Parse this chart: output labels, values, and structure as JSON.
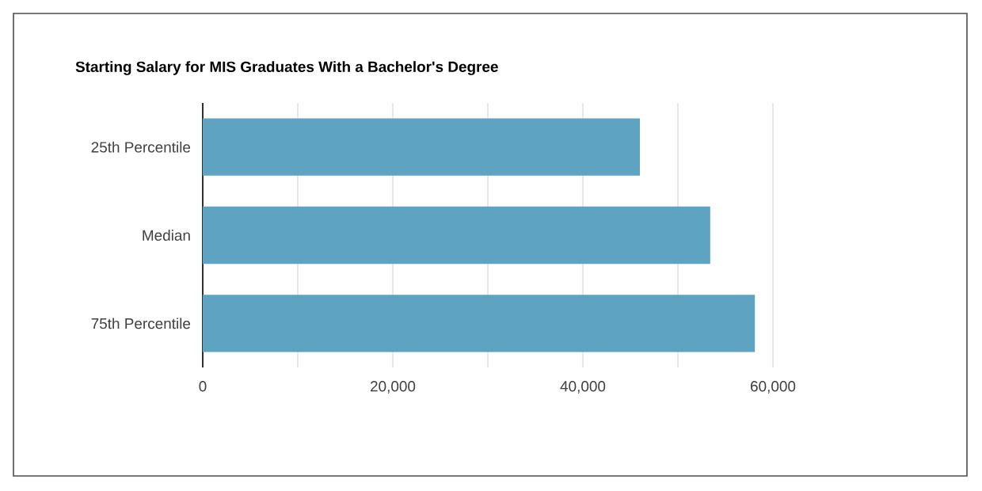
{
  "chart_data": {
    "type": "bar",
    "orientation": "horizontal",
    "title": "Starting Salary for MIS Graduates With a Bachelor's Degree",
    "categories": [
      "25th Percentile",
      "Median",
      "75th Percentile"
    ],
    "values": [
      46000,
      53400,
      58100
    ],
    "color": "#5ea3c1",
    "xlim": [
      0,
      60000
    ],
    "xticks": [
      0,
      {
        "value": 10000,
        "label": null
      },
      {
        "value": 20000,
        "label": "20,000"
      },
      {
        "value": 30000,
        "label": null
      },
      {
        "value": 40000,
        "label": "40,000"
      },
      {
        "value": 50000,
        "label": null
      },
      {
        "value": 60000,
        "label": "60,000"
      }
    ],
    "grid": "x"
  }
}
